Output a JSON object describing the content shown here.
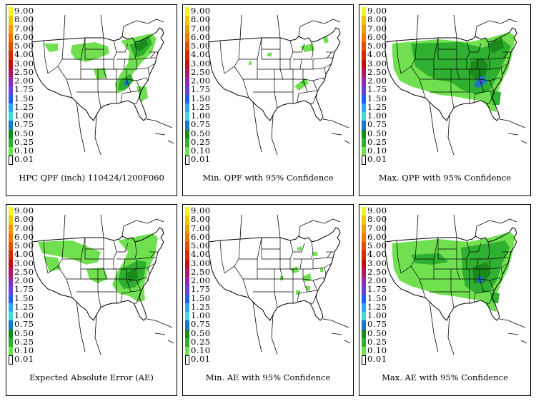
{
  "legend": {
    "levels": [
      "9.00",
      "8.00",
      "7.00",
      "6.00",
      "5.00",
      "4.00",
      "3.00",
      "2.50",
      "2.00",
      "1.75",
      "1.50",
      "1.25",
      "1.00",
      "0.75",
      "0.50",
      "0.25",
      "0.10",
      "0.01"
    ],
    "colors": [
      "#f5f520",
      "#f0c800",
      "#e8a000",
      "#f07800",
      "#e05000",
      "#d82800",
      "#c01010",
      "#b01860",
      "#9028b0",
      "#6840d8",
      "#2060f0",
      "#30a8f0",
      "#40d8d8",
      "#1a78c8",
      "#1a8a1a",
      "#30b030",
      "#70e050",
      "#ffffff"
    ]
  },
  "panels": [
    {
      "caption": "HPC QPF (inch) 110424/1200F060",
      "level": "forecast"
    },
    {
      "caption": "Min. QPF with 95% Confidence",
      "level": "sparse"
    },
    {
      "caption": "Max. QPF with 95% Confidence",
      "level": "max"
    },
    {
      "caption": "Expected Absolute Error (AE)",
      "level": "ae"
    },
    {
      "caption": "Min. AE with 95% Confidence",
      "level": "sparse2"
    },
    {
      "caption": "Max. AE with 95% Confidence",
      "level": "max2"
    }
  ]
}
